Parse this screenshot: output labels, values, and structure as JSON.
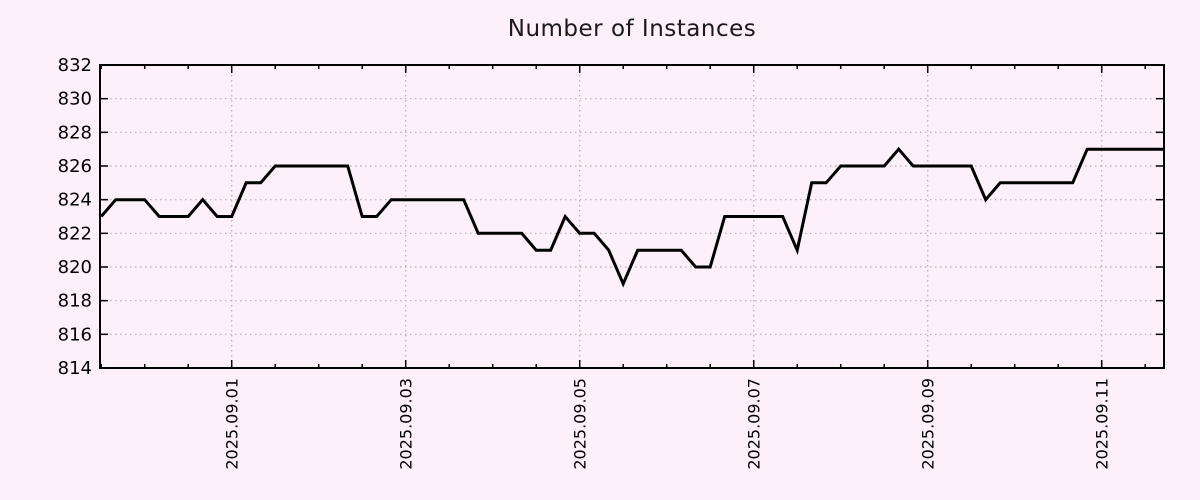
{
  "chart_data": {
    "type": "line",
    "title": "Number of Instances",
    "legend": "none",
    "grid": "dotted",
    "series": [
      {
        "name": "instances",
        "start_day_offset_from_2025_09_01": -1.5,
        "interval_days": 0.1666667,
        "values": [
          823,
          824,
          824,
          824,
          823,
          823,
          823,
          824,
          823,
          823,
          825,
          825,
          826,
          826,
          826,
          826,
          826,
          826,
          823,
          823,
          824,
          824,
          824,
          824,
          824,
          824,
          822,
          822,
          822,
          822,
          821,
          821,
          823,
          822,
          822,
          821,
          819,
          821,
          821,
          821,
          821,
          820,
          820,
          823,
          823,
          823,
          823,
          823,
          821,
          825,
          825,
          826,
          826,
          826,
          826,
          827,
          826,
          826,
          826,
          826,
          826,
          824,
          825,
          825,
          825,
          825,
          825,
          825,
          827,
          827,
          827,
          827,
          827,
          827
        ]
      }
    ],
    "x_axis": {
      "tick_labels": [
        "2025.09.01",
        "2025.09.03",
        "2025.09.05",
        "2025.09.07",
        "2025.09.09",
        "2025.09.11"
      ],
      "tick_day_offsets": [
        0,
        2,
        4,
        6,
        8,
        10
      ],
      "minor_tick_interval_days": 0.5,
      "range_days": [
        -1.514,
        10.716
      ]
    },
    "y_axis": {
      "tick_labels": [
        "814",
        "816",
        "818",
        "820",
        "822",
        "824",
        "826",
        "828",
        "830",
        "832"
      ],
      "tick_values": [
        814,
        816,
        818,
        820,
        822,
        824,
        826,
        828,
        830,
        832
      ],
      "range": [
        814,
        832
      ]
    },
    "colors": {
      "background": "#fdf0fa",
      "line": "#000000",
      "grid": "#b0b0b0",
      "border": "#000000",
      "text": "#000000"
    }
  }
}
